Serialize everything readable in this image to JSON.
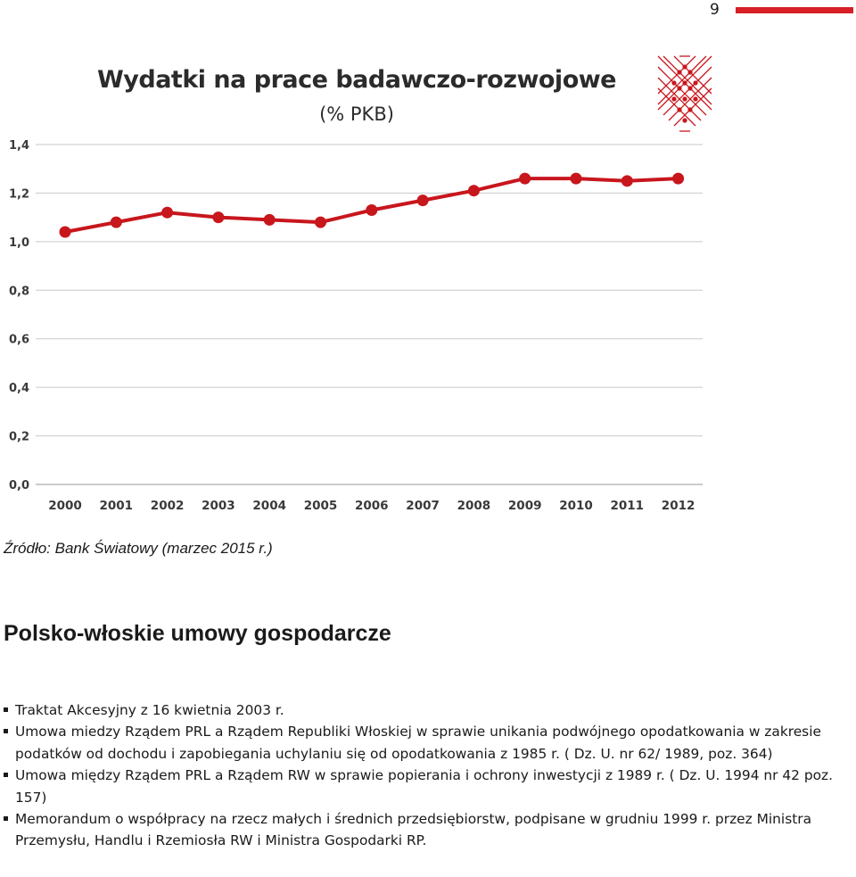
{
  "page": {
    "number": "9"
  },
  "chart_data": {
    "type": "line",
    "title": "Wydatki na prace badawczo-rozwojowe",
    "subtitle": "(% PKB)",
    "xlabel": "",
    "ylabel": "",
    "categories": [
      "2000",
      "2001",
      "2002",
      "2003",
      "2004",
      "2005",
      "2006",
      "2007",
      "2008",
      "2009",
      "2010",
      "2011",
      "2012"
    ],
    "series": [
      {
        "values": [
          1.04,
          1.08,
          1.12,
          1.1,
          1.09,
          1.08,
          1.13,
          1.17,
          1.21,
          1.26,
          1.26,
          1.25,
          1.26
        ]
      }
    ],
    "ylim": [
      0,
      1.4
    ],
    "yticks": [
      "0,0",
      "0,2",
      "0,4",
      "0,6",
      "0,8",
      "1,0",
      "1,2",
      "1,4"
    ],
    "grid": true,
    "line_color": "#c8161d",
    "grid_color": "#c8c8c8"
  },
  "colors": {
    "accent": "#d61f26",
    "logo": "#c8161d"
  },
  "logo": {
    "icon": "lattice-logo-icon"
  },
  "source_text": "Źródło: Bank Światowy (marzec 2015 r.)",
  "section": {
    "heading": "Polsko-włoskie umowy gospodarcze",
    "items": [
      "Traktat Akcesyjny z 16 kwietnia 2003 r.",
      "Umowa miedzy Rządem PRL a Rządem Republiki Włoskiej w sprawie unikania podwójnego opodatkowania w zakresie podatków od dochodu i zapobiegania uchylaniu się od opodatkowania z 1985 r. ( Dz. U. nr 62/ 1989, poz. 364)",
      "Umowa między Rządem PRL a Rządem RW w sprawie popierania i ochrony inwestycji z 1989 r. ( Dz. U. 1994 nr 42 poz. 157)",
      "Memorandum o współpracy na rzecz małych i średnich przedsiębiorstw, podpisane w grudniu 1999 r. przez Ministra Przemysłu, Handlu i Rzemiosła RW i Ministra Gospodarki RP."
    ]
  }
}
